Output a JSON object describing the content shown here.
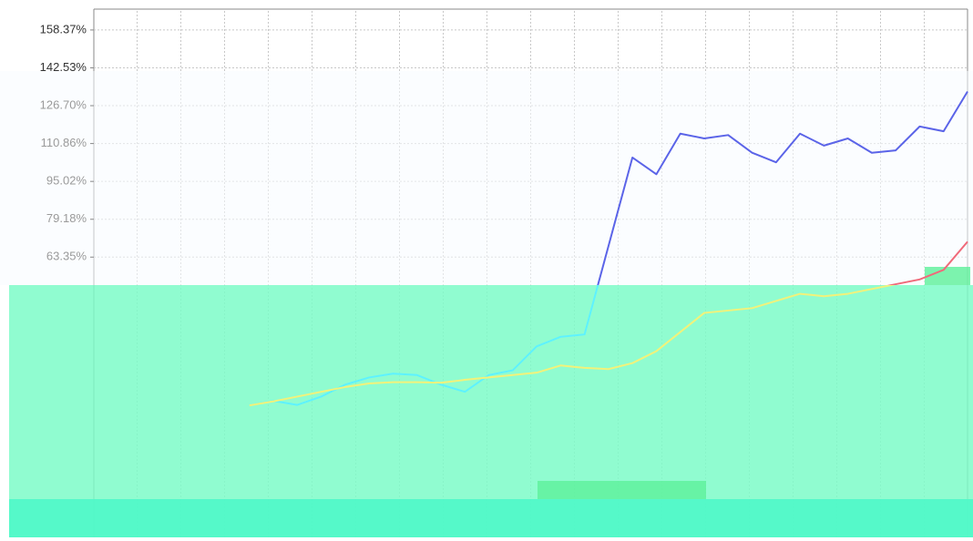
{
  "chart_data": {
    "type": "line",
    "x": [
      0,
      1,
      2,
      3,
      4,
      5,
      6,
      7,
      8,
      9,
      10,
      11,
      12,
      13,
      14,
      15,
      16,
      17,
      18,
      19,
      20,
      21,
      22,
      23,
      24,
      25,
      26,
      27,
      28,
      29,
      30
    ],
    "xlim": [
      -6.5,
      30
    ],
    "ylim": [
      -53.9,
      167.1
    ],
    "yticks": [
      {
        "value": 158.37,
        "label": "158.37%"
      },
      {
        "value": 142.53,
        "label": "142.53%"
      },
      {
        "value": 126.7,
        "label": "126.70%"
      },
      {
        "value": 110.86,
        "label": "110.86%"
      },
      {
        "value": 95.02,
        "label": "95.02%"
      },
      {
        "value": 79.18,
        "label": "79.18%"
      },
      {
        "value": 63.35,
        "label": "63.35%"
      }
    ],
    "grid": true,
    "series": [
      {
        "color": "#5b64e8",
        "values": [
          1.3,
          3.2,
          1.5,
          5,
          10,
          13,
          14.6,
          14,
          10,
          7,
          14,
          16,
          26,
          30,
          31,
          68,
          105,
          98,
          115,
          113,
          114.4,
          107,
          103,
          115,
          110,
          113,
          107,
          108,
          118,
          116,
          132.6
        ]
      },
      {
        "color": "#f06a7a",
        "values": [
          1.3,
          3,
          5,
          7,
          9,
          10.5,
          11,
          11,
          10.8,
          12,
          13,
          14,
          15,
          18,
          17,
          16.5,
          19,
          24,
          32,
          40,
          41,
          42,
          45,
          48,
          47,
          48,
          50,
          52,
          54,
          58,
          69.8
        ]
      }
    ]
  }
}
